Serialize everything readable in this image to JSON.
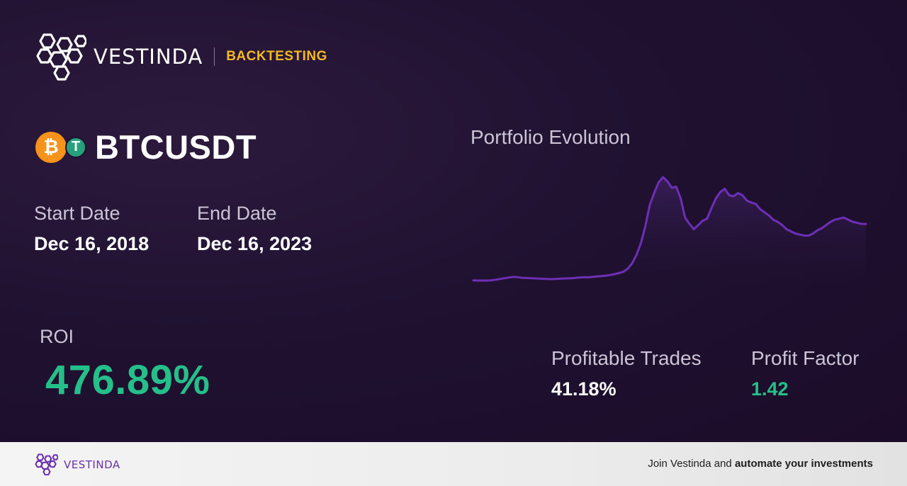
{
  "brand": {
    "name": "VESTINDA",
    "tag": "BACKTESTING",
    "logo_icon": "hexagon-cluster-icon"
  },
  "pair": {
    "base_icon": "bitcoin-icon",
    "quote_icon": "tether-icon",
    "base_symbol": "₿",
    "quote_symbol": "T",
    "name": "BTCUSDT"
  },
  "dates": {
    "start_label": "Start Date",
    "start_value": "Dec 16, 2018",
    "end_label": "End Date",
    "end_value": "Dec 16, 2023"
  },
  "roi": {
    "label": "ROI",
    "value": "476.89%"
  },
  "chart": {
    "title": "Portfolio Evolution",
    "line_color": "#6c2fb5",
    "chart_data": {
      "type": "line",
      "values": [
        1.0,
        0.99,
        0.99,
        0.99,
        1.0,
        1.03,
        1.06,
        1.1,
        1.13,
        1.16,
        1.15,
        1.12,
        1.11,
        1.1,
        1.09,
        1.08,
        1.07,
        1.06,
        1.06,
        1.07,
        1.08,
        1.09,
        1.1,
        1.11,
        1.13,
        1.15,
        1.14,
        1.16,
        1.18,
        1.2,
        1.22,
        1.25,
        1.29,
        1.34,
        1.4,
        1.55,
        1.8,
        2.2,
        2.75,
        3.55,
        4.55,
        5.1,
        5.6,
        5.85,
        5.65,
        5.35,
        5.4,
        4.85,
        3.95,
        3.65,
        3.4,
        3.6,
        3.8,
        3.9,
        4.4,
        4.85,
        5.15,
        5.3,
        5.0,
        4.95,
        5.1,
        5.0,
        4.75,
        4.65,
        4.6,
        4.35,
        4.2,
        4.05,
        3.85,
        3.75,
        3.6,
        3.4,
        3.3,
        3.2,
        3.15,
        3.1,
        3.1,
        3.2,
        3.35,
        3.45,
        3.6,
        3.75,
        3.85,
        3.9,
        3.95,
        3.85,
        3.75,
        3.7,
        3.65,
        3.65
      ]
    }
  },
  "stats": {
    "profitable_trades_label": "Profitable Trades",
    "profitable_trades_value": "41.18%",
    "profit_factor_label": "Profit Factor",
    "profit_factor_value": "1.42",
    "positive_color": "#25c08a"
  },
  "footer": {
    "brand_name": "VESTINDA",
    "cta_prefix": "Join Vestinda and ",
    "cta_bold": "automate your investments"
  }
}
